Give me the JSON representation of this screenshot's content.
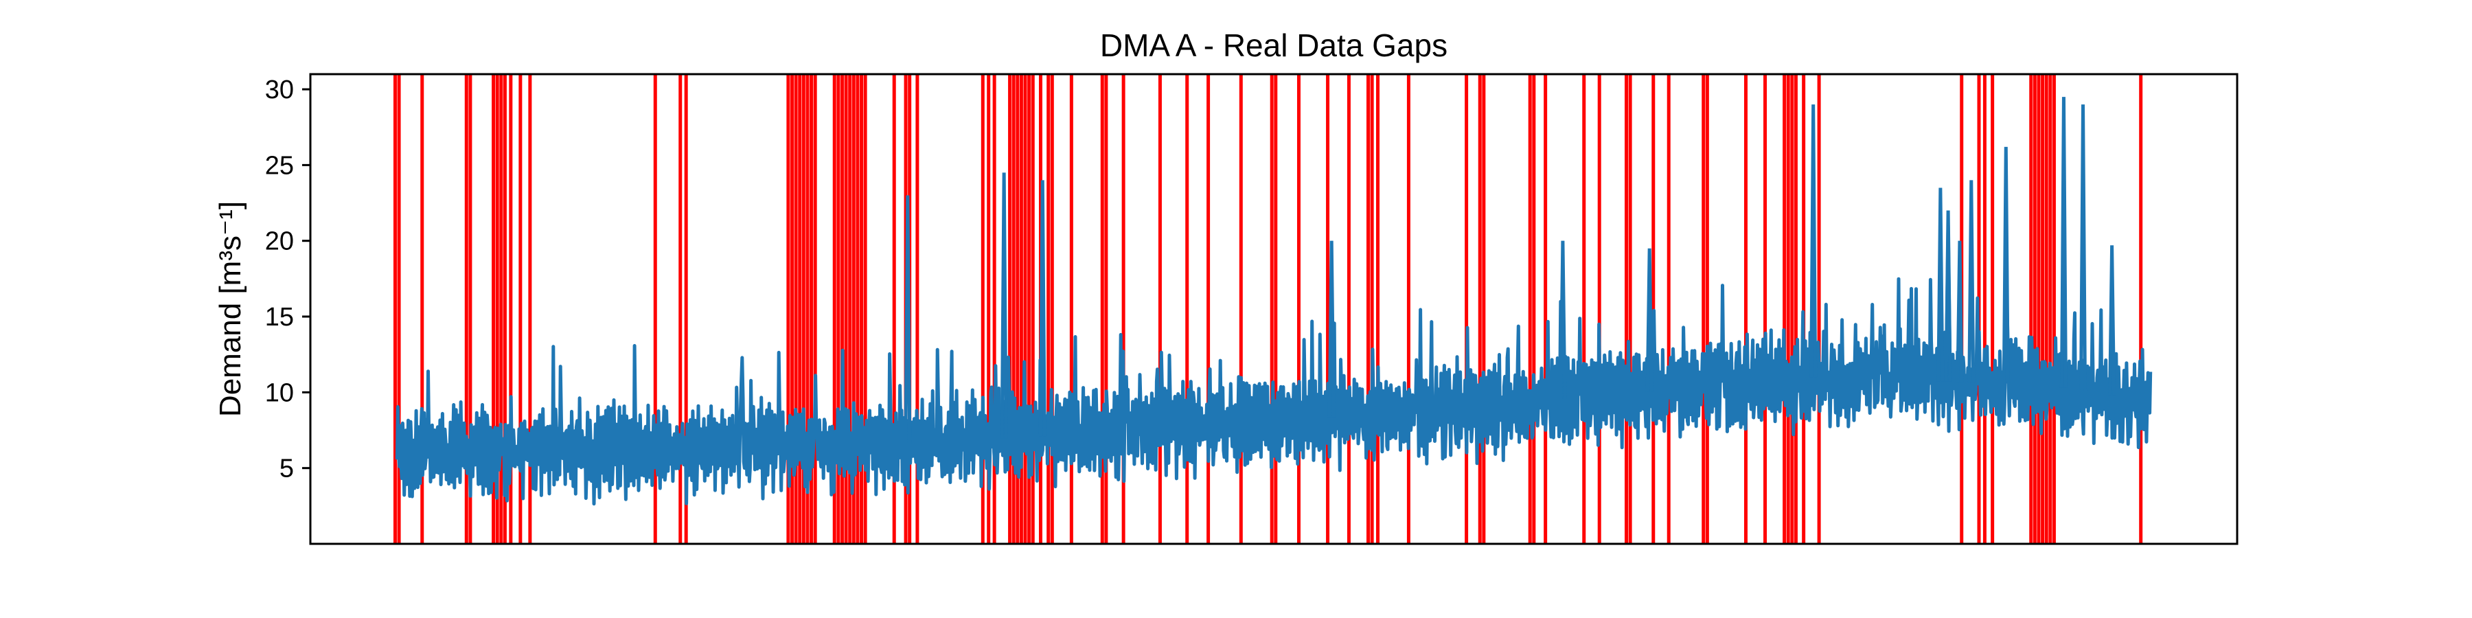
{
  "chart_data": {
    "type": "line",
    "title": "DMA A - Real Data Gaps",
    "xlabel": "",
    "ylabel": "Demand [m³s⁻¹]",
    "ylim": [
      0,
      31
    ],
    "yticks": [
      5,
      10,
      15,
      20,
      25,
      30
    ],
    "x_ticks_shown": false,
    "grid": false,
    "series": [
      {
        "name": "",
        "color": "#1f77b4",
        "summary": {
          "x_range": [
            0.045,
            0.955
          ],
          "baseline_trend": [
            [
              0.05,
              6.0
            ],
            [
              0.3,
              6.5
            ],
            [
              0.5,
              8.0
            ],
            [
              0.65,
              9.5
            ],
            [
              0.78,
              11.0
            ],
            [
              0.9,
              10.5
            ],
            [
              0.95,
              9.5
            ]
          ],
          "spikes": [
            [
              0.31,
              23.0
            ],
            [
              0.36,
              24.5
            ],
            [
              0.38,
              24.0
            ],
            [
              0.78,
              29.0
            ],
            [
              0.846,
              23.5
            ],
            [
              0.862,
              24.0
            ],
            [
              0.85,
              22.0
            ],
            [
              0.85,
              21.0
            ],
            [
              0.856,
              20.0
            ],
            [
              0.88,
              26.2
            ],
            [
              0.91,
              19.5
            ],
            [
              0.935,
              19.7
            ],
            [
              0.53,
              20.0
            ],
            [
              0.65,
              20.0
            ],
            [
              0.695,
              19.5
            ],
            [
              0.91,
              29.5
            ],
            [
              0.92,
              29.0
            ]
          ]
        }
      }
    ],
    "gap_markers": {
      "color": "#ff0000",
      "x": [
        0.044,
        0.046,
        0.058,
        0.081,
        0.083,
        0.095,
        0.097,
        0.099,
        0.101,
        0.104,
        0.109,
        0.114,
        0.179,
        0.192,
        0.195,
        0.248,
        0.25,
        0.252,
        0.254,
        0.256,
        0.258,
        0.26,
        0.262,
        0.272,
        0.274,
        0.276,
        0.278,
        0.28,
        0.282,
        0.284,
        0.286,
        0.288,
        0.303,
        0.309,
        0.311,
        0.315,
        0.349,
        0.352,
        0.355,
        0.363,
        0.365,
        0.367,
        0.369,
        0.371,
        0.373,
        0.375,
        0.379,
        0.383,
        0.385,
        0.395,
        0.411,
        0.413,
        0.422,
        0.441,
        0.455,
        0.466,
        0.483,
        0.499,
        0.501,
        0.513,
        0.528,
        0.539,
        0.549,
        0.551,
        0.554,
        0.57,
        0.6,
        0.607,
        0.609,
        0.633,
        0.635,
        0.641,
        0.661,
        0.669,
        0.683,
        0.685,
        0.697,
        0.705,
        0.723,
        0.725,
        0.745,
        0.755,
        0.765,
        0.767,
        0.769,
        0.771,
        0.775,
        0.783,
        0.857,
        0.866,
        0.869,
        0.873,
        0.893,
        0.895,
        0.897,
        0.899,
        0.901,
        0.903,
        0.905,
        0.95
      ]
    }
  }
}
